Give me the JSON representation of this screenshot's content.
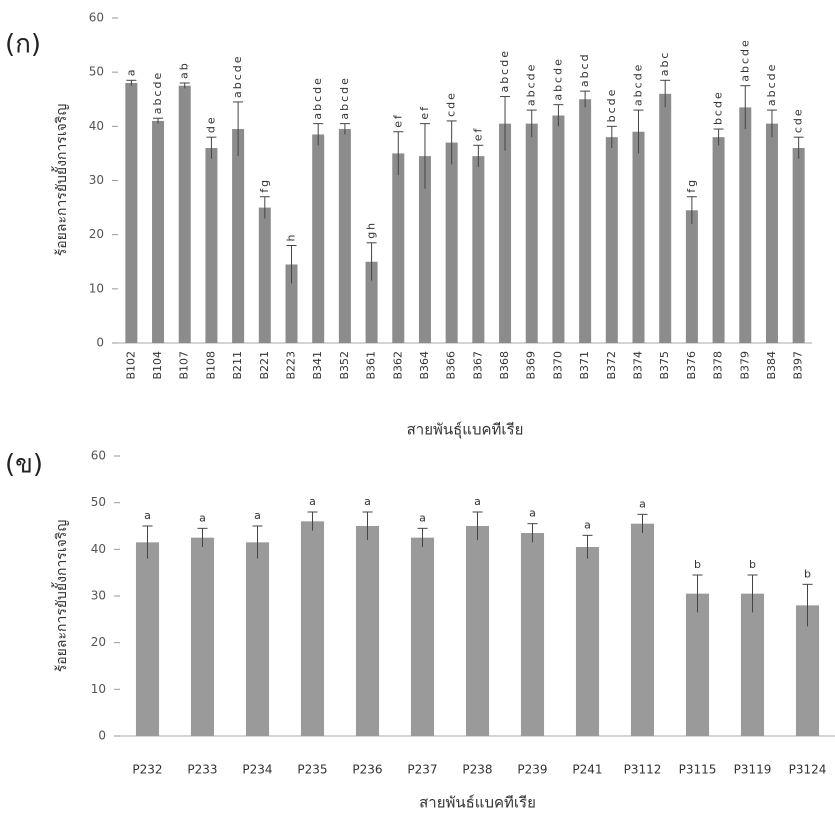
{
  "chart_data": [
    {
      "type": "bar",
      "panel_label": "(ก)",
      "y_label": "ร้อยละการยับยั้งการเจริญ",
      "x_label": "สายพันธุ์แบคทีเรีย",
      "categories": [
        "B102",
        "B104",
        "B107",
        "B108",
        "B211",
        "B221",
        "B223",
        "B341",
        "B352",
        "B361",
        "B362",
        "B364",
        "B366",
        "B367",
        "B368",
        "B369",
        "B370",
        "B371",
        "B372",
        "B374",
        "B375",
        "B376",
        "B378",
        "B379",
        "B384",
        "B397"
      ],
      "values": [
        48,
        41,
        47.5,
        36,
        39.5,
        25,
        14.5,
        38.5,
        39.5,
        15,
        35,
        34.5,
        37,
        34.5,
        40.5,
        40.5,
        42,
        45,
        38,
        39,
        46,
        24.5,
        38,
        43.5,
        40.5,
        36
      ],
      "errors": [
        0.5,
        0.5,
        0.5,
        2,
        5,
        2,
        3.5,
        2,
        1,
        3.5,
        4,
        6,
        4,
        2,
        5,
        2.5,
        2,
        1.5,
        2,
        4,
        2.5,
        2.5,
        1.5,
        4,
        2.5,
        2
      ],
      "letters": [
        "a",
        "abcde",
        "ab",
        "de",
        "abcde",
        "fg",
        "h",
        "abcde",
        "abcde",
        "gh",
        "ef",
        "ef",
        "cde",
        "ef",
        "abcde",
        "abcde",
        "abcde",
        "abcd",
        "bcde",
        "abcde",
        "abc",
        "fg",
        "bcde",
        "abcde",
        "abcde",
        "cde"
      ],
      "color": "#8c8c8c",
      "ylim": [
        0,
        60
      ],
      "yticks": [
        0,
        10,
        20,
        30,
        40,
        50,
        60
      ]
    },
    {
      "type": "bar",
      "panel_label": "(ข)",
      "y_label": "ร้อยละการยับยั้งการเจริญ",
      "x_label": "สายพันธ์แบคทีเรีย",
      "categories": [
        "P232",
        "P233",
        "P234",
        "P235",
        "P236",
        "P237",
        "P238",
        "P239",
        "P241",
        "P3112",
        "P3115",
        "P3119",
        "P3124"
      ],
      "values": [
        41.5,
        42.5,
        41.5,
        46,
        45,
        42.5,
        45,
        43.5,
        40.5,
        45.5,
        30.5,
        30.5,
        28
      ],
      "errors": [
        3.5,
        2,
        3.5,
        2,
        3,
        2,
        3,
        2,
        2.5,
        2,
        4,
        4,
        4.5
      ],
      "letters": [
        "a",
        "a",
        "a",
        "a",
        "a",
        "a",
        "a",
        "a",
        "a",
        "a",
        "b",
        "b",
        "b"
      ],
      "color": "#9a9a9a",
      "ylim": [
        0,
        60
      ],
      "yticks": [
        0,
        10,
        20,
        30,
        40,
        50,
        60
      ]
    }
  ]
}
